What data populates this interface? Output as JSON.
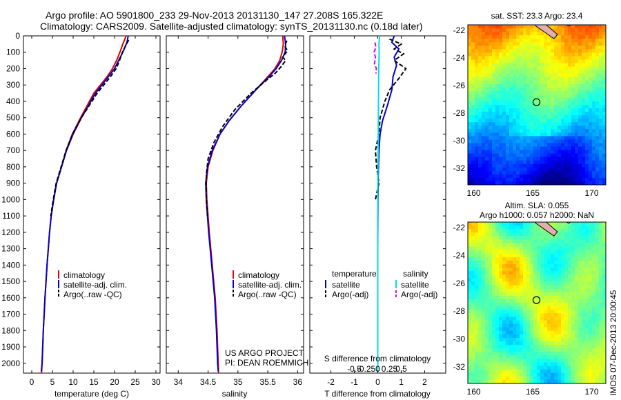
{
  "header": {
    "line1": "Argo profile: AO 5901800_233 29-Nov-2013 20131130_147 27.208S 165.322E",
    "line2": "Climatology: CARS2009. Satellite-adjusted climatology: synTS_20131130.nc (0.18d later)"
  },
  "credits": {
    "project": "US ARGO PROJECT",
    "pi": "PI: DEAN ROEMMICH",
    "stamp": "IMOS 07-Dec-2013 20:00:45"
  },
  "colors": {
    "climatology": "#e00000",
    "satellite": "#0000d0",
    "argo": "#000000",
    "salinity_satellite": "#00e0e0",
    "salinity_argo": "#e000e0",
    "land": "#e0b0b0"
  },
  "chart_data": [
    {
      "id": "temperature",
      "type": "line",
      "xlabel": "temperature (deg C)",
      "ylabel": "",
      "xlim": [
        -2,
        31
      ],
      "ylim": [
        2060,
        0
      ],
      "xticks": [
        0,
        5,
        10,
        15,
        20,
        25,
        30
      ],
      "yticks": [
        0,
        100,
        200,
        300,
        400,
        500,
        600,
        700,
        800,
        900,
        1000,
        1100,
        1200,
        1300,
        1400,
        1500,
        1600,
        1700,
        1800,
        1900,
        2000
      ],
      "legend": [
        "climatology",
        "satellite-adj. clim.",
        "Argo(..raw -QC)"
      ],
      "legend_location": "lower-center",
      "series": [
        {
          "name": "climatology",
          "style": "solid",
          "color": "#e00000",
          "x": [
            22.8,
            22.0,
            21.3,
            20.5,
            19.5,
            18.2,
            15.0,
            11.8,
            9.8,
            8.3,
            7.2,
            6.0,
            5.3,
            4.7,
            4.3,
            3.7,
            3.2,
            2.8,
            2.5,
            2.3,
            2.2
          ],
          "y": [
            0,
            50,
            100,
            150,
            200,
            250,
            350,
            500,
            600,
            700,
            800,
            900,
            1000,
            1100,
            1200,
            1400,
            1600,
            1800,
            2000,
            2100,
            2150
          ]
        },
        {
          "name": "satellite-adj. clim.",
          "style": "solid",
          "color": "#0000d0",
          "x": [
            23.3,
            23.0,
            22.0,
            21.0,
            20.0,
            18.5,
            15.4,
            12.0,
            10.0,
            8.4,
            7.2,
            6.0,
            5.3,
            4.7,
            4.3,
            3.7,
            3.2,
            2.8,
            2.5,
            2.3
          ],
          "y": [
            0,
            40,
            100,
            150,
            200,
            250,
            350,
            500,
            600,
            700,
            800,
            900,
            1000,
            1100,
            1200,
            1400,
            1600,
            1800,
            2000,
            2050
          ]
        },
        {
          "name": "Argo(..raw -QC)",
          "style": "dashed",
          "color": "#000000",
          "x": [
            23.4,
            22.9,
            21.9,
            21.2,
            20.4,
            19.0,
            15.8,
            12.0,
            9.9,
            8.3,
            7.1,
            5.9,
            5.2,
            4.6
          ],
          "y": [
            25,
            50,
            100,
            150,
            200,
            250,
            350,
            500,
            600,
            700,
            800,
            900,
            1000,
            1100
          ]
        }
      ]
    },
    {
      "id": "salinity",
      "type": "line",
      "xlabel": "salinity",
      "ylabel": "",
      "xlim": [
        33.8,
        36.1
      ],
      "ylim": [
        2060,
        0
      ],
      "xticks": [
        34,
        34.5,
        35,
        35.5,
        36
      ],
      "legend": [
        "climatology",
        "satellite-adj. clim.",
        "Argo(..raw -QC)"
      ],
      "legend_location": "lower-center",
      "series": [
        {
          "name": "climatology",
          "style": "solid",
          "color": "#e00000",
          "x": [
            35.75,
            35.76,
            35.74,
            35.7,
            35.62,
            35.5,
            35.3,
            35.05,
            34.85,
            34.7,
            34.58,
            34.5,
            34.47,
            34.48,
            34.52,
            34.57,
            34.62,
            34.65,
            34.67,
            34.68
          ],
          "y": [
            0,
            50,
            100,
            150,
            200,
            250,
            330,
            430,
            520,
            600,
            700,
            800,
            900,
            1000,
            1200,
            1400,
            1600,
            1800,
            2000,
            2150
          ]
        },
        {
          "name": "satellite-adj. clim.",
          "style": "solid",
          "color": "#0000d0",
          "x": [
            35.78,
            35.8,
            35.79,
            35.73,
            35.64,
            35.52,
            35.3,
            35.05,
            34.85,
            34.7,
            34.57,
            34.49,
            34.46,
            34.47,
            34.51,
            34.56,
            34.61,
            34.64,
            34.66,
            34.67
          ],
          "y": [
            0,
            50,
            100,
            150,
            200,
            250,
            330,
            430,
            520,
            600,
            700,
            800,
            900,
            1000,
            1200,
            1400,
            1600,
            1800,
            2000,
            2050
          ]
        },
        {
          "name": "Argo(..raw -QC)",
          "style": "dashed",
          "color": "#000000",
          "x": [
            35.82,
            35.78,
            35.83,
            35.75,
            35.8,
            35.72,
            35.62,
            35.48,
            35.22,
            34.95,
            34.75,
            34.6,
            34.5,
            34.47,
            34.47,
            34.49
          ],
          "y": [
            30,
            60,
            90,
            130,
            150,
            190,
            230,
            270,
            350,
            450,
            550,
            650,
            750,
            850,
            1000,
            1100
          ]
        }
      ]
    },
    {
      "id": "differences",
      "type": "line",
      "xlabel": "T difference from climatology",
      "x2label": "S difference from climatology",
      "xlim": [
        -2.9,
        2.9
      ],
      "ylim": [
        2060,
        0
      ],
      "xticks": [
        -2,
        -1,
        0,
        1,
        2
      ],
      "x2ticks": [
        "-0.5",
        "-0.25",
        "0",
        "0.25",
        "0.5"
      ],
      "legend": [
        "temperature",
        "satellite",
        "Argo(-adj)",
        "salinity",
        "satellite",
        "Argo(-adj)"
      ],
      "legend_location": "lower-center",
      "series": [
        {
          "name": "satellite",
          "group": "temperature",
          "style": "solid",
          "color": "#0000d0",
          "x": [
            0.7,
            0.6,
            0.9,
            0.7,
            0.8,
            0.65,
            0.6,
            0.4,
            0.2,
            0.1,
            0.05,
            0.02,
            0.01,
            0,
            0,
            0
          ],
          "y": [
            0,
            40,
            80,
            130,
            180,
            250,
            330,
            430,
            520,
            600,
            700,
            850,
            1000,
            1300,
            1600,
            2050
          ]
        },
        {
          "name": "Argo(-adj)",
          "group": "temperature",
          "style": "dashed",
          "color": "#000000",
          "x": [
            0.5,
            1.0,
            0.7,
            1.1,
            0.7,
            1.2,
            0.9,
            0.5,
            0.3,
            0.1,
            0.05,
            -0.1,
            -0.05,
            0.05,
            -0.1
          ],
          "y": [
            20,
            50,
            80,
            110,
            150,
            200,
            260,
            330,
            400,
            500,
            600,
            700,
            800,
            900,
            1000
          ]
        },
        {
          "name": "satellite",
          "group": "salinity",
          "style": "solid",
          "color": "#00e0e0",
          "x": [
            0.08,
            0.05,
            0.06,
            0.04,
            0.03,
            0.02,
            0.01,
            0,
            0,
            0,
            0
          ],
          "y": [
            0,
            50,
            100,
            200,
            400,
            600,
            800,
            1000,
            1300,
            1700,
            2050
          ]
        },
        {
          "name": "Argo(-adj)",
          "group": "salinity",
          "style": "dashed",
          "color": "#e000e0",
          "x": [
            -0.12,
            -0.08,
            -0.16,
            -0.1,
            -0.14,
            -0.06,
            -0.08
          ],
          "y": [
            40,
            70,
            100,
            130,
            170,
            200,
            230
          ]
        }
      ]
    },
    {
      "id": "sst-map",
      "type": "heatmap",
      "title": "sat. SST: 23.3 Argo: 23.4",
      "xticks": [
        160,
        165,
        170
      ],
      "yticks": [
        -22,
        -24,
        -26,
        -28,
        -30,
        -32
      ],
      "xlim": [
        159.5,
        171.2
      ],
      "ylim": [
        -33.2,
        -21.6
      ],
      "colormap": "jet",
      "marker": {
        "lon": 165.322,
        "lat": -27.208
      }
    },
    {
      "id": "sla-map",
      "type": "heatmap",
      "title": "Altim. SLA: 0.055",
      "subtitle": "Argo h1000: 0.057 h2000: NaN",
      "xticks": [
        160,
        165,
        170
      ],
      "yticks": [
        -22,
        -24,
        -26,
        -28,
        -30,
        -32
      ],
      "xlim": [
        159.5,
        171.2
      ],
      "ylim": [
        -33.2,
        -21.6
      ],
      "colormap": "jet",
      "marker": {
        "lon": 165.322,
        "lat": -27.208
      }
    }
  ]
}
